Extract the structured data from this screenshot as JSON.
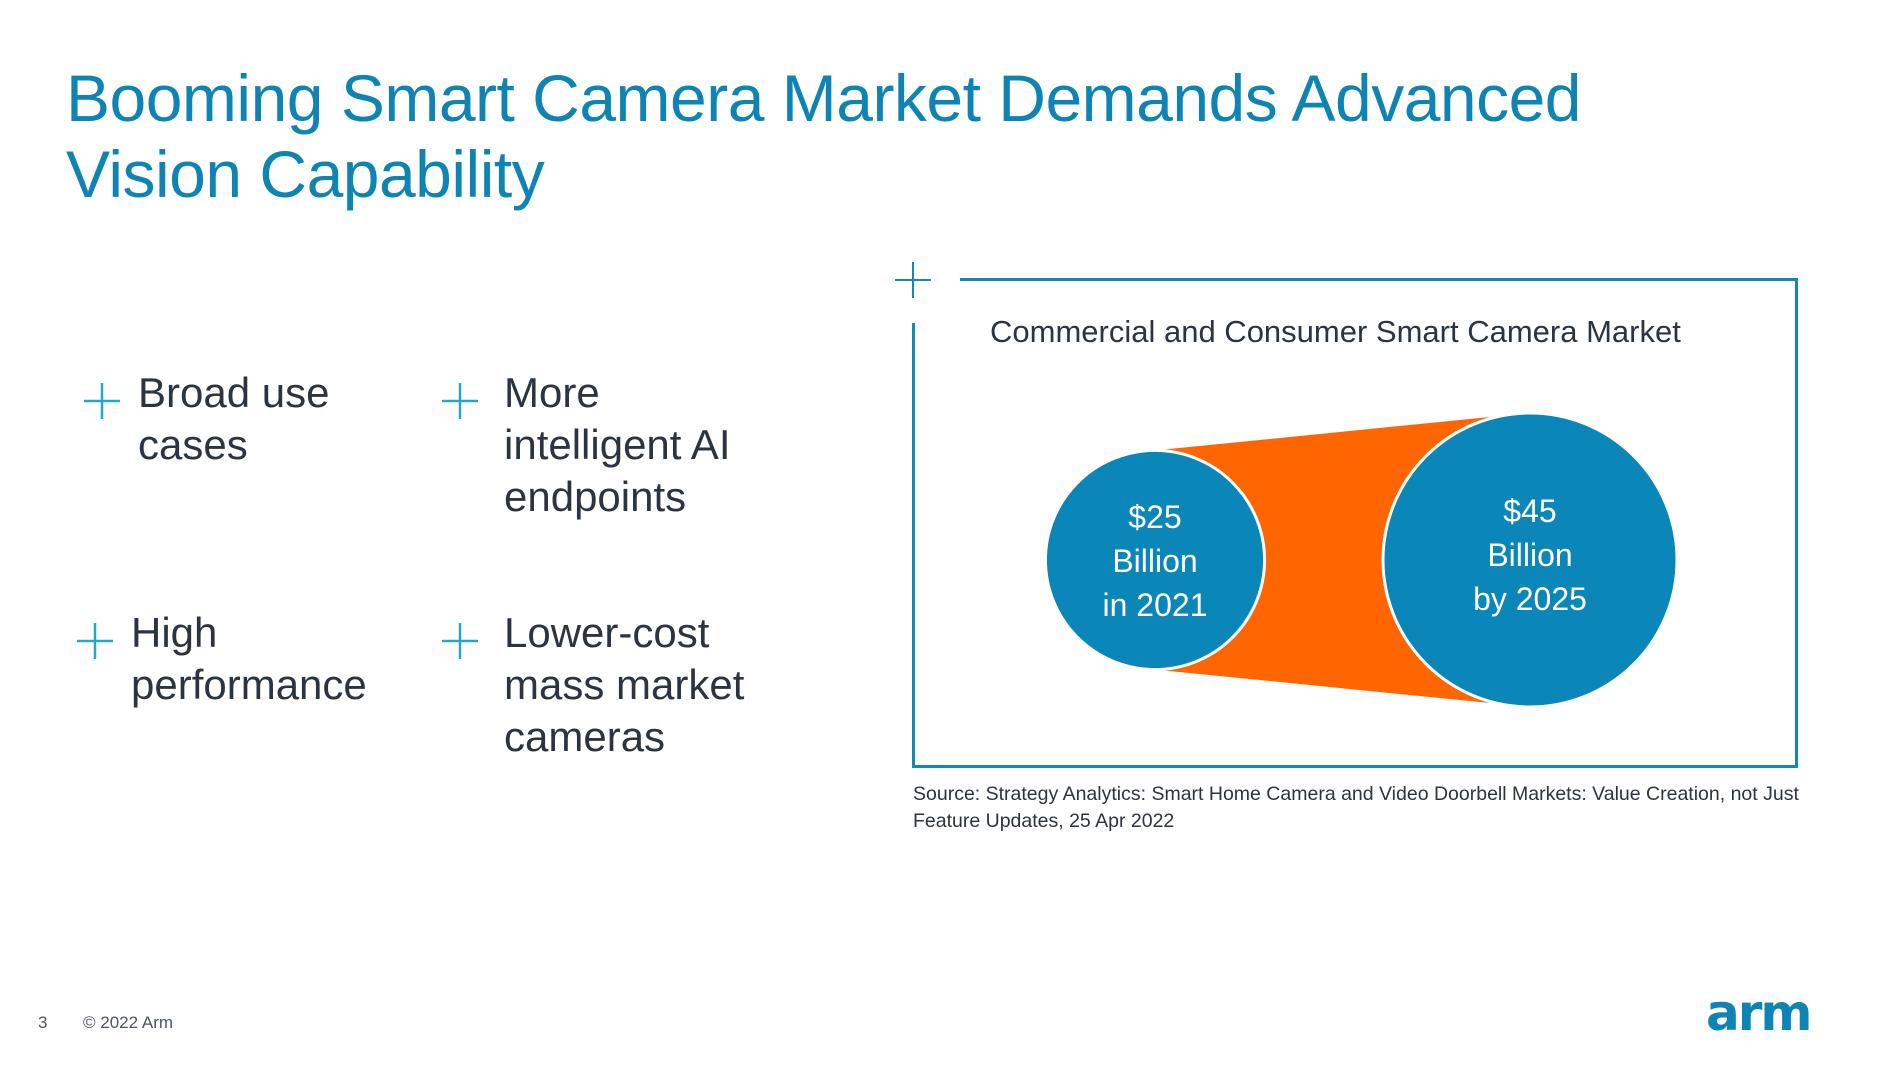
{
  "slide": {
    "title_line1": "Booming Smart Camera Market Demands Advanced",
    "title_line2": "Vision Capability",
    "page_number": "3",
    "copyright": "© 2022 Arm",
    "logo_text": "arm"
  },
  "bullets": [
    {
      "icon": "plus-icon",
      "lines": [
        "Broad use",
        "cases"
      ]
    },
    {
      "icon": "plus-icon",
      "lines": [
        "More",
        "intelligent AI",
        "endpoints"
      ]
    },
    {
      "icon": "plus-icon",
      "lines": [
        "High",
        "performance"
      ]
    },
    {
      "icon": "plus-icon",
      "lines": [
        "Lower-cost",
        "mass market",
        "cameras"
      ]
    }
  ],
  "chart_data": {
    "type": "bubble-comparison",
    "title": "Commercial and Consumer Smart Camera Market",
    "unit": "Billion USD",
    "points": [
      {
        "label_line1": "$25",
        "label_line2": "Billion",
        "label_line3": "in 2021",
        "year": 2021,
        "value": 25
      },
      {
        "label_line1": "$45",
        "label_line2": "Billion",
        "label_line3": "by 2025",
        "year": 2025,
        "value": 45
      }
    ],
    "source": "Source: Strategy Analytics: Smart Home Camera and Video Doorbell Markets: Value Creation, not Just Feature Updates, 25 Apr 2022"
  },
  "colors": {
    "title": "#0e84b4",
    "circle": "#0a86b8",
    "connector": "#ff6600",
    "frame": "#1388b5",
    "plus_icon": "#23a9c6",
    "text": "#2c3440"
  }
}
